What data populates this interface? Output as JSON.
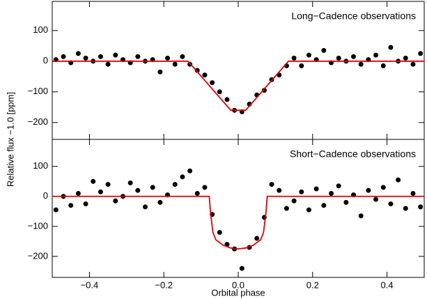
{
  "chart_data": [
    {
      "type": "scatter",
      "annotation": "Long−Cadence observations",
      "ylabel": "Relative flux −1.0 [ppm]",
      "xlim": [
        -0.5,
        0.5
      ],
      "ylim": [
        -255,
        195
      ],
      "yticks": [
        {
          "value": 100,
          "label": "100"
        },
        0,
        {
          "value": -100,
          "label": "−100"
        },
        {
          "value": -200,
          "label": "−200"
        }
      ],
      "series": [
        {
          "mode": "markers",
          "color": "#000000",
          "x": [
            -0.49,
            -0.47,
            -0.45,
            -0.43,
            -0.41,
            -0.39,
            -0.37,
            -0.35,
            -0.33,
            -0.31,
            -0.29,
            -0.27,
            -0.25,
            -0.23,
            -0.21,
            -0.19,
            -0.17,
            -0.15,
            -0.13,
            -0.11,
            -0.09,
            -0.07,
            -0.05,
            -0.03,
            -0.01,
            0.01,
            0.03,
            0.05,
            0.07,
            0.09,
            0.11,
            0.13,
            0.15,
            0.17,
            0.19,
            0.21,
            0.23,
            0.25,
            0.27,
            0.29,
            0.31,
            0.33,
            0.35,
            0.37,
            0.39,
            0.41,
            0.43,
            0.45,
            0.47,
            0.49
          ],
          "values": [
            5,
            15,
            -5,
            25,
            10,
            0,
            15,
            -10,
            20,
            5,
            -5,
            15,
            0,
            5,
            -35,
            10,
            -10,
            15,
            -10,
            -30,
            -45,
            -70,
            -100,
            -125,
            -160,
            -165,
            -140,
            -110,
            -95,
            -60,
            -45,
            -15,
            10,
            -15,
            20,
            5,
            35,
            -5,
            10,
            0,
            15,
            -10,
            5,
            20,
            -15,
            45,
            0,
            10,
            -10,
            25
          ]
        },
        {
          "mode": "line",
          "color": "#e00000",
          "x": [
            -0.5,
            -0.135,
            -0.02,
            0.02,
            0.135,
            0.5
          ],
          "values": [
            0,
            0,
            -160,
            -160,
            0,
            0
          ]
        }
      ]
    },
    {
      "type": "scatter",
      "annotation": "Short−Cadence observations",
      "xlabel": "Orbital phase",
      "xlim": [
        -0.5,
        0.5
      ],
      "ylim": [
        -270,
        190
      ],
      "xticks": [
        {
          "value": -0.4,
          "label": "−0.4"
        },
        {
          "value": -0.2,
          "label": "−0.2"
        },
        {
          "value": 0,
          "label": "0.0"
        },
        0.2,
        0.4
      ],
      "yticks": [
        {
          "value": 100,
          "label": "100"
        },
        0,
        {
          "value": -100,
          "label": "−100"
        },
        {
          "value": -200,
          "label": "−200"
        }
      ],
      "series": [
        {
          "mode": "markers",
          "color": "#000000",
          "x": [
            -0.49,
            -0.47,
            -0.45,
            -0.43,
            -0.41,
            -0.39,
            -0.37,
            -0.35,
            -0.33,
            -0.31,
            -0.29,
            -0.27,
            -0.25,
            -0.23,
            -0.21,
            -0.19,
            -0.17,
            -0.15,
            -0.13,
            -0.11,
            -0.09,
            -0.07,
            -0.05,
            -0.03,
            -0.01,
            0.01,
            0.03,
            0.05,
            0.07,
            0.09,
            0.11,
            0.13,
            0.15,
            0.17,
            0.19,
            0.21,
            0.23,
            0.25,
            0.27,
            0.29,
            0.31,
            0.33,
            0.35,
            0.37,
            0.39,
            0.41,
            0.43,
            0.45,
            0.47,
            0.49
          ],
          "values": [
            -45,
            0,
            -30,
            10,
            -25,
            50,
            15,
            40,
            -15,
            0,
            45,
            20,
            -35,
            30,
            -20,
            5,
            40,
            65,
            85,
            10,
            30,
            -60,
            -120,
            -160,
            -175,
            -240,
            -170,
            -140,
            -70,
            40,
            20,
            -40,
            -15,
            15,
            -45,
            25,
            -30,
            10,
            35,
            -20,
            5,
            -65,
            20,
            -10,
            30,
            -25,
            55,
            -40,
            10,
            -35
          ]
        },
        {
          "mode": "line",
          "color": "#e00000",
          "x": [
            -0.5,
            -0.078,
            -0.074,
            -0.068,
            -0.06,
            -0.04,
            -0.02,
            0,
            0.02,
            0.04,
            0.06,
            0.068,
            0.074,
            0.078,
            0.5
          ],
          "values": [
            0,
            0,
            -60,
            -120,
            -145,
            -163,
            -172,
            -175,
            -172,
            -163,
            -145,
            -120,
            -60,
            0,
            0
          ]
        }
      ]
    }
  ]
}
